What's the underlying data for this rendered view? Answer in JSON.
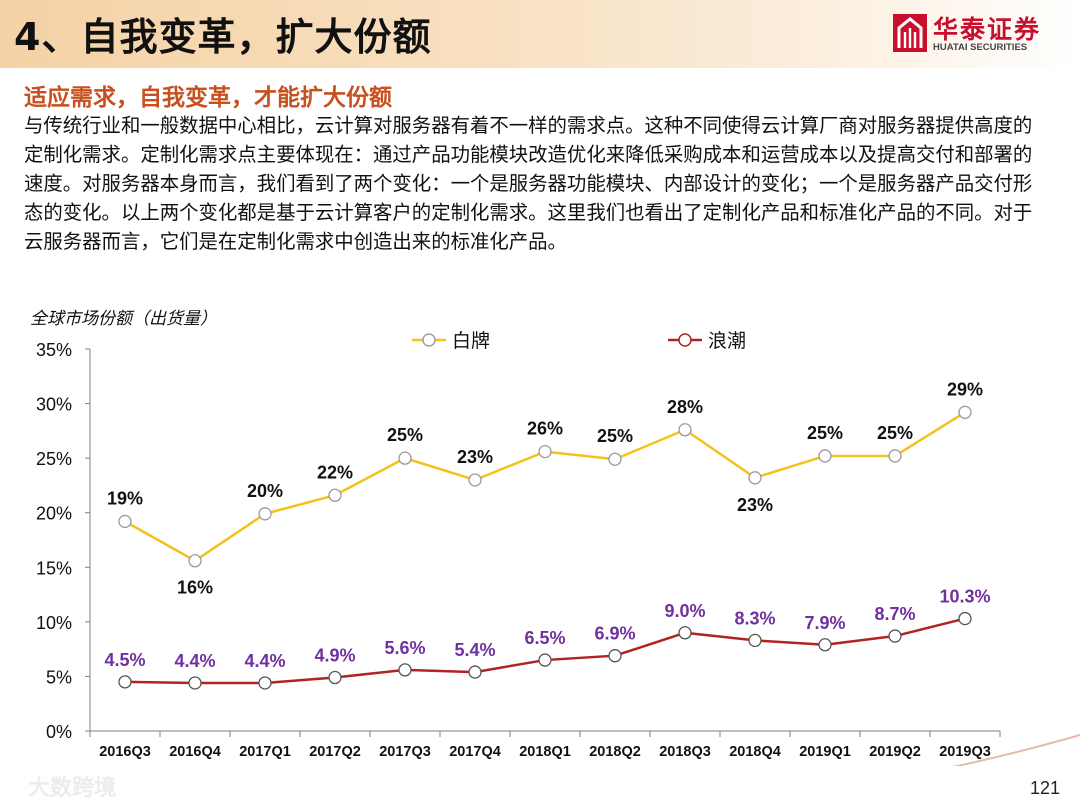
{
  "header": {
    "title": "4、自我变革，扩大份额",
    "logo_cn": "华泰证券",
    "logo_en": "HUATAI SECURITIES",
    "brand_color": "#c8102e"
  },
  "subtitle": "适应需求，自我变革，才能扩大份额",
  "body_text": "与传统行业和一般数据中心相比，云计算对服务器有着不一样的需求点。这种不同使得云计算厂商对服务器提供高度的定制化需求。定制化需求点主要体现在：通过产品功能模块改造优化来降低采购成本和运营成本以及提高交付和部署的速度。对服务器本身而言，我们看到了两个变化：一个是服务器功能模块、内部设计的变化；一个是服务器产品交付形态的变化。以上两个变化都是基于云计算客户的定制化需求。这里我们也看出了定制化产品和标准化产品的不同。对于云服务器而言，它们是在定制化需求中创造出来的标准化产品。",
  "chart_data": {
    "type": "line",
    "title": "全球市场份额（出货量）",
    "categories": [
      "2016Q3",
      "2016Q4",
      "2017Q1",
      "2017Q2",
      "2017Q3",
      "2017Q4",
      "2018Q1",
      "2018Q2",
      "2018Q3",
      "2018Q4",
      "2019Q1",
      "2019Q2",
      "2019Q3"
    ],
    "ylim": [
      0,
      35
    ],
    "yticks": [
      "0%",
      "5%",
      "10%",
      "15%",
      "20%",
      "25%",
      "30%",
      "35%"
    ],
    "legend_position": "top-center",
    "series": [
      {
        "name": "白牌",
        "color": "#f2c21b",
        "label_color": "#111111",
        "values": [
          19.2,
          15.6,
          19.9,
          21.6,
          25.0,
          23.0,
          25.6,
          24.9,
          27.6,
          23.2,
          25.2,
          25.2,
          29.2
        ],
        "labels": [
          "19%",
          "16%",
          "20%",
          "22%",
          "25%",
          "23%",
          "26%",
          "25%",
          "28%",
          "23%",
          "25%",
          "25%",
          "29%"
        ]
      },
      {
        "name": "浪潮",
        "color": "#b22222",
        "label_color": "#7030a0",
        "values": [
          4.5,
          4.4,
          4.4,
          4.9,
          5.6,
          5.4,
          6.5,
          6.9,
          9.0,
          8.3,
          7.9,
          8.7,
          10.3
        ],
        "labels": [
          "4.5%",
          "4.4%",
          "4.4%",
          "4.9%",
          "5.6%",
          "5.4%",
          "6.5%",
          "6.9%",
          "9.0%",
          "8.3%",
          "7.9%",
          "8.7%",
          "10.3%"
        ]
      }
    ]
  },
  "page_number": "121",
  "watermark": "大数跨境"
}
